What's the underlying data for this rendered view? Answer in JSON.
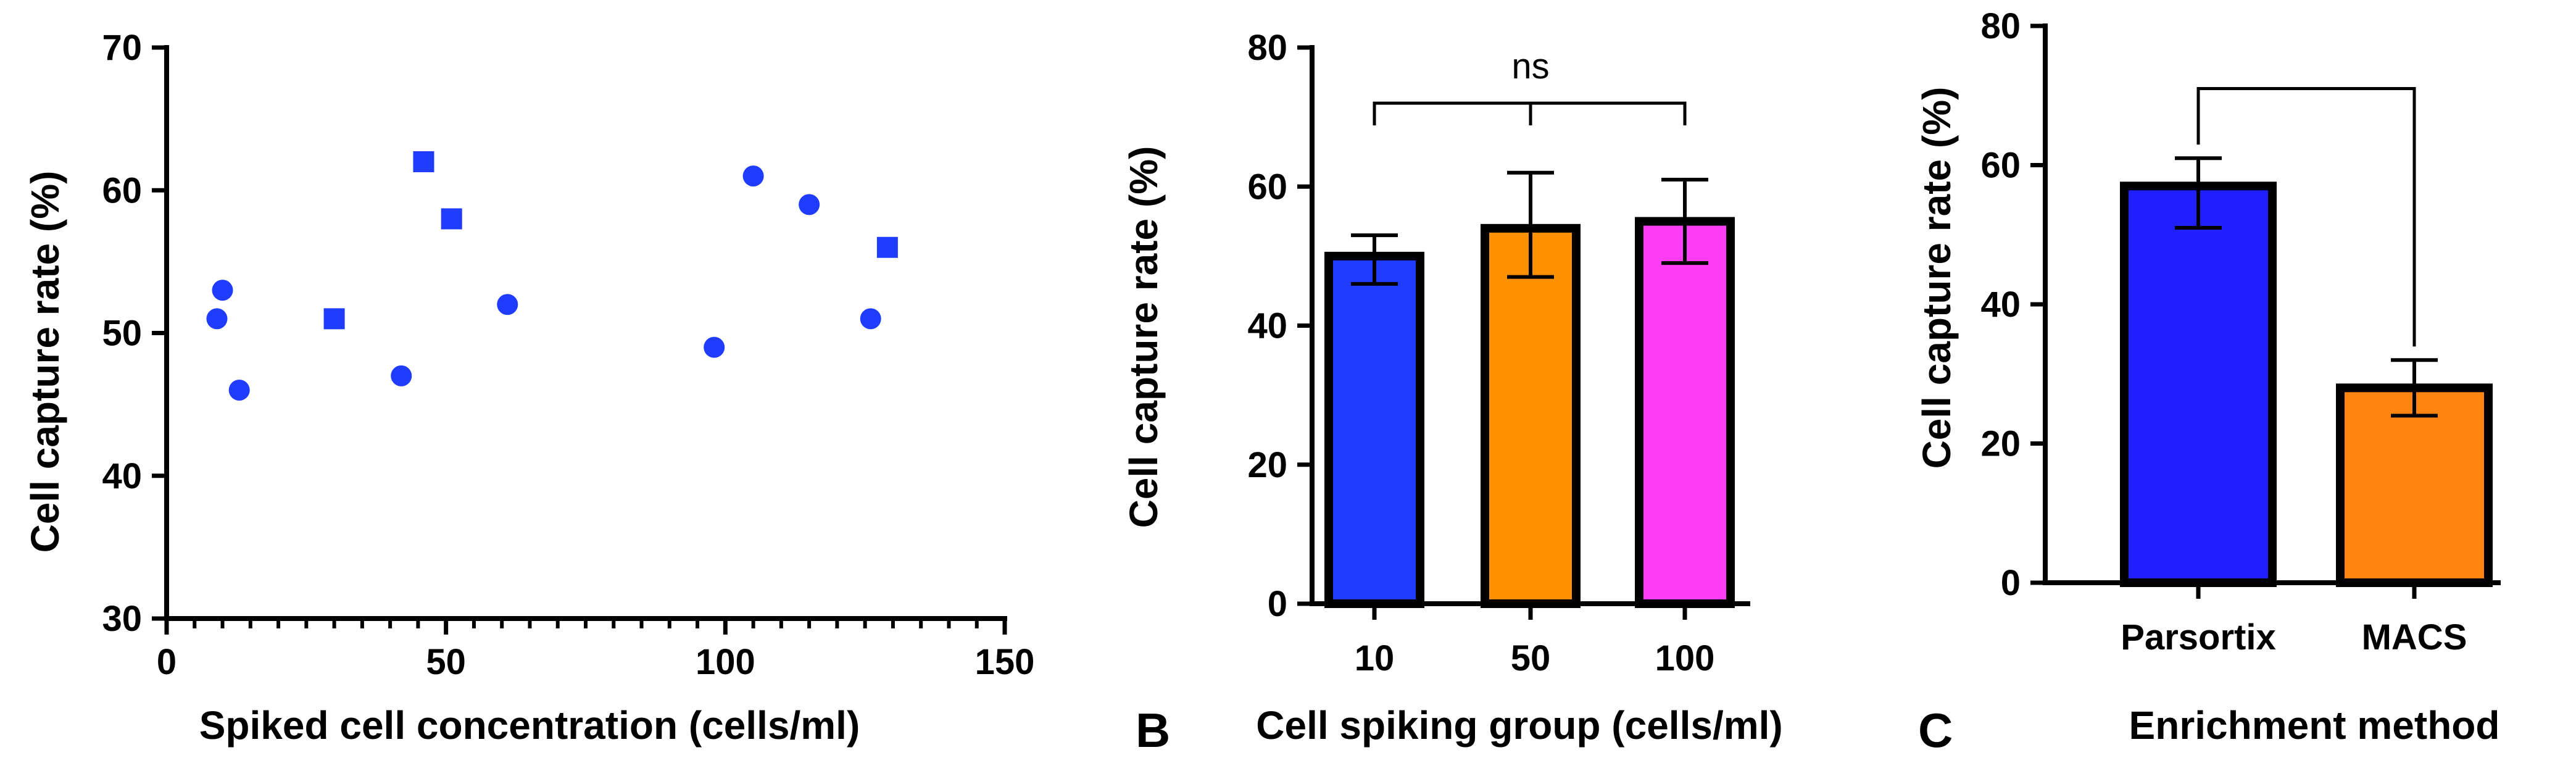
{
  "chart_data": [
    {
      "panel": "",
      "type": "scatter",
      "xlabel": "Spiked cell concentration (cells/ml)",
      "ylabel": "Cell capture rate (%)",
      "xlim": [
        0,
        150
      ],
      "ylim": [
        30,
        70
      ],
      "xticks": [
        0,
        50,
        100,
        150
      ],
      "yticks": [
        30,
        40,
        50,
        60,
        70
      ],
      "x_minor_step": 5,
      "marker_color": "#1f3cff",
      "series": [
        {
          "name": "circles",
          "marker": "circle",
          "points": [
            [
              9,
              51
            ],
            [
              10,
              53
            ],
            [
              13,
              46
            ],
            [
              42,
              47
            ],
            [
              61,
              52
            ],
            [
              98,
              49
            ],
            [
              105,
              61
            ],
            [
              115,
              59
            ],
            [
              126,
              51
            ]
          ]
        },
        {
          "name": "squares",
          "marker": "square",
          "points": [
            [
              30,
              51
            ],
            [
              46,
              62
            ],
            [
              51,
              58
            ],
            [
              129,
              56
            ]
          ]
        }
      ]
    },
    {
      "panel": "B",
      "type": "bar",
      "xlabel": "Cell spiking group (cells/ml)",
      "ylabel": "Cell capture rate (%)",
      "ylim": [
        0,
        80
      ],
      "yticks": [
        0,
        20,
        40,
        60,
        80
      ],
      "categories": [
        "10",
        "50",
        "100"
      ],
      "values": [
        50,
        54,
        55
      ],
      "error_low": [
        46,
        47,
        49
      ],
      "error_high": [
        53,
        62,
        61
      ],
      "colors": [
        "#1f3cff",
        "#ff9100",
        "#ff3df5"
      ],
      "annotation": {
        "label": "ns",
        "bracket_y": 72,
        "spans": [
          "10",
          "50",
          "100"
        ]
      }
    },
    {
      "panel": "C",
      "type": "bar",
      "xlabel": "Enrichment method",
      "ylabel": "Cell capture rate (%)",
      "ylim": [
        0,
        80
      ],
      "yticks": [
        0,
        20,
        40,
        60,
        80
      ],
      "categories": [
        "Parsortix",
        "MACS"
      ],
      "values": [
        57,
        28
      ],
      "error_low": [
        51,
        24
      ],
      "error_high": [
        61,
        32
      ],
      "colors": [
        "#1f1fff",
        "#ff8412"
      ],
      "annotation": {
        "label": "",
        "bracket_y": 71
      }
    }
  ]
}
